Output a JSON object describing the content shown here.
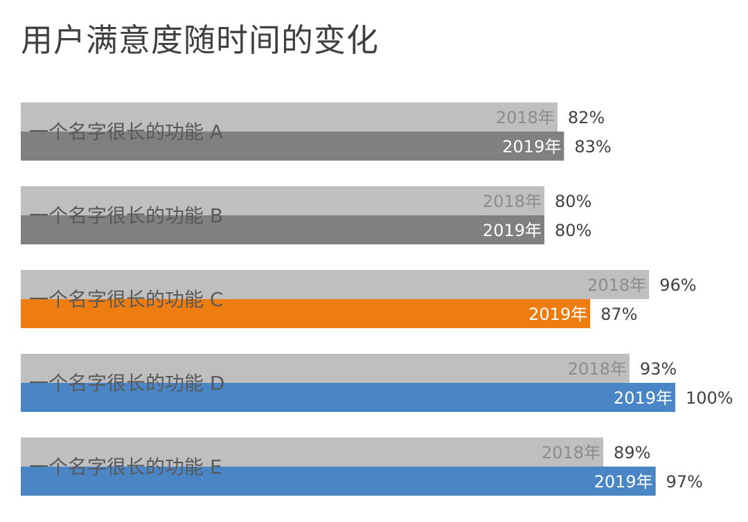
{
  "chart_data": {
    "type": "bar",
    "orientation": "horizontal",
    "title": "用户满意度随时间的变化",
    "categories": [
      "一个名字很长的功能 A",
      "一个名字很长的功能 B",
      "一个名字很长的功能 C",
      "一个名字很长的功能 D",
      "一个名字很长的功能 E"
    ],
    "series": [
      {
        "name": "2018年",
        "values": [
          82,
          80,
          96,
          93,
          89
        ],
        "colors": [
          "#bfbfbf",
          "#bfbfbf",
          "#bfbfbf",
          "#bfbfbf",
          "#bfbfbf"
        ]
      },
      {
        "name": "2019年",
        "values": [
          83,
          80,
          87,
          100,
          97
        ],
        "colors": [
          "#808080",
          "#808080",
          "#ed7d10",
          "#4a86c5",
          "#4a86c5"
        ]
      }
    ],
    "value_labels": {
      "2018年": [
        "82%",
        "80%",
        "96%",
        "93%",
        "89%"
      ],
      "2019年": [
        "83%",
        "80%",
        "87%",
        "100%",
        "97%"
      ]
    },
    "xlim": [
      0,
      100
    ],
    "unit": "%",
    "grid": false,
    "legend": "none",
    "series_label_colors": {
      "2018年": "#8c8c8c",
      "2019年": "#ffffff"
    }
  }
}
